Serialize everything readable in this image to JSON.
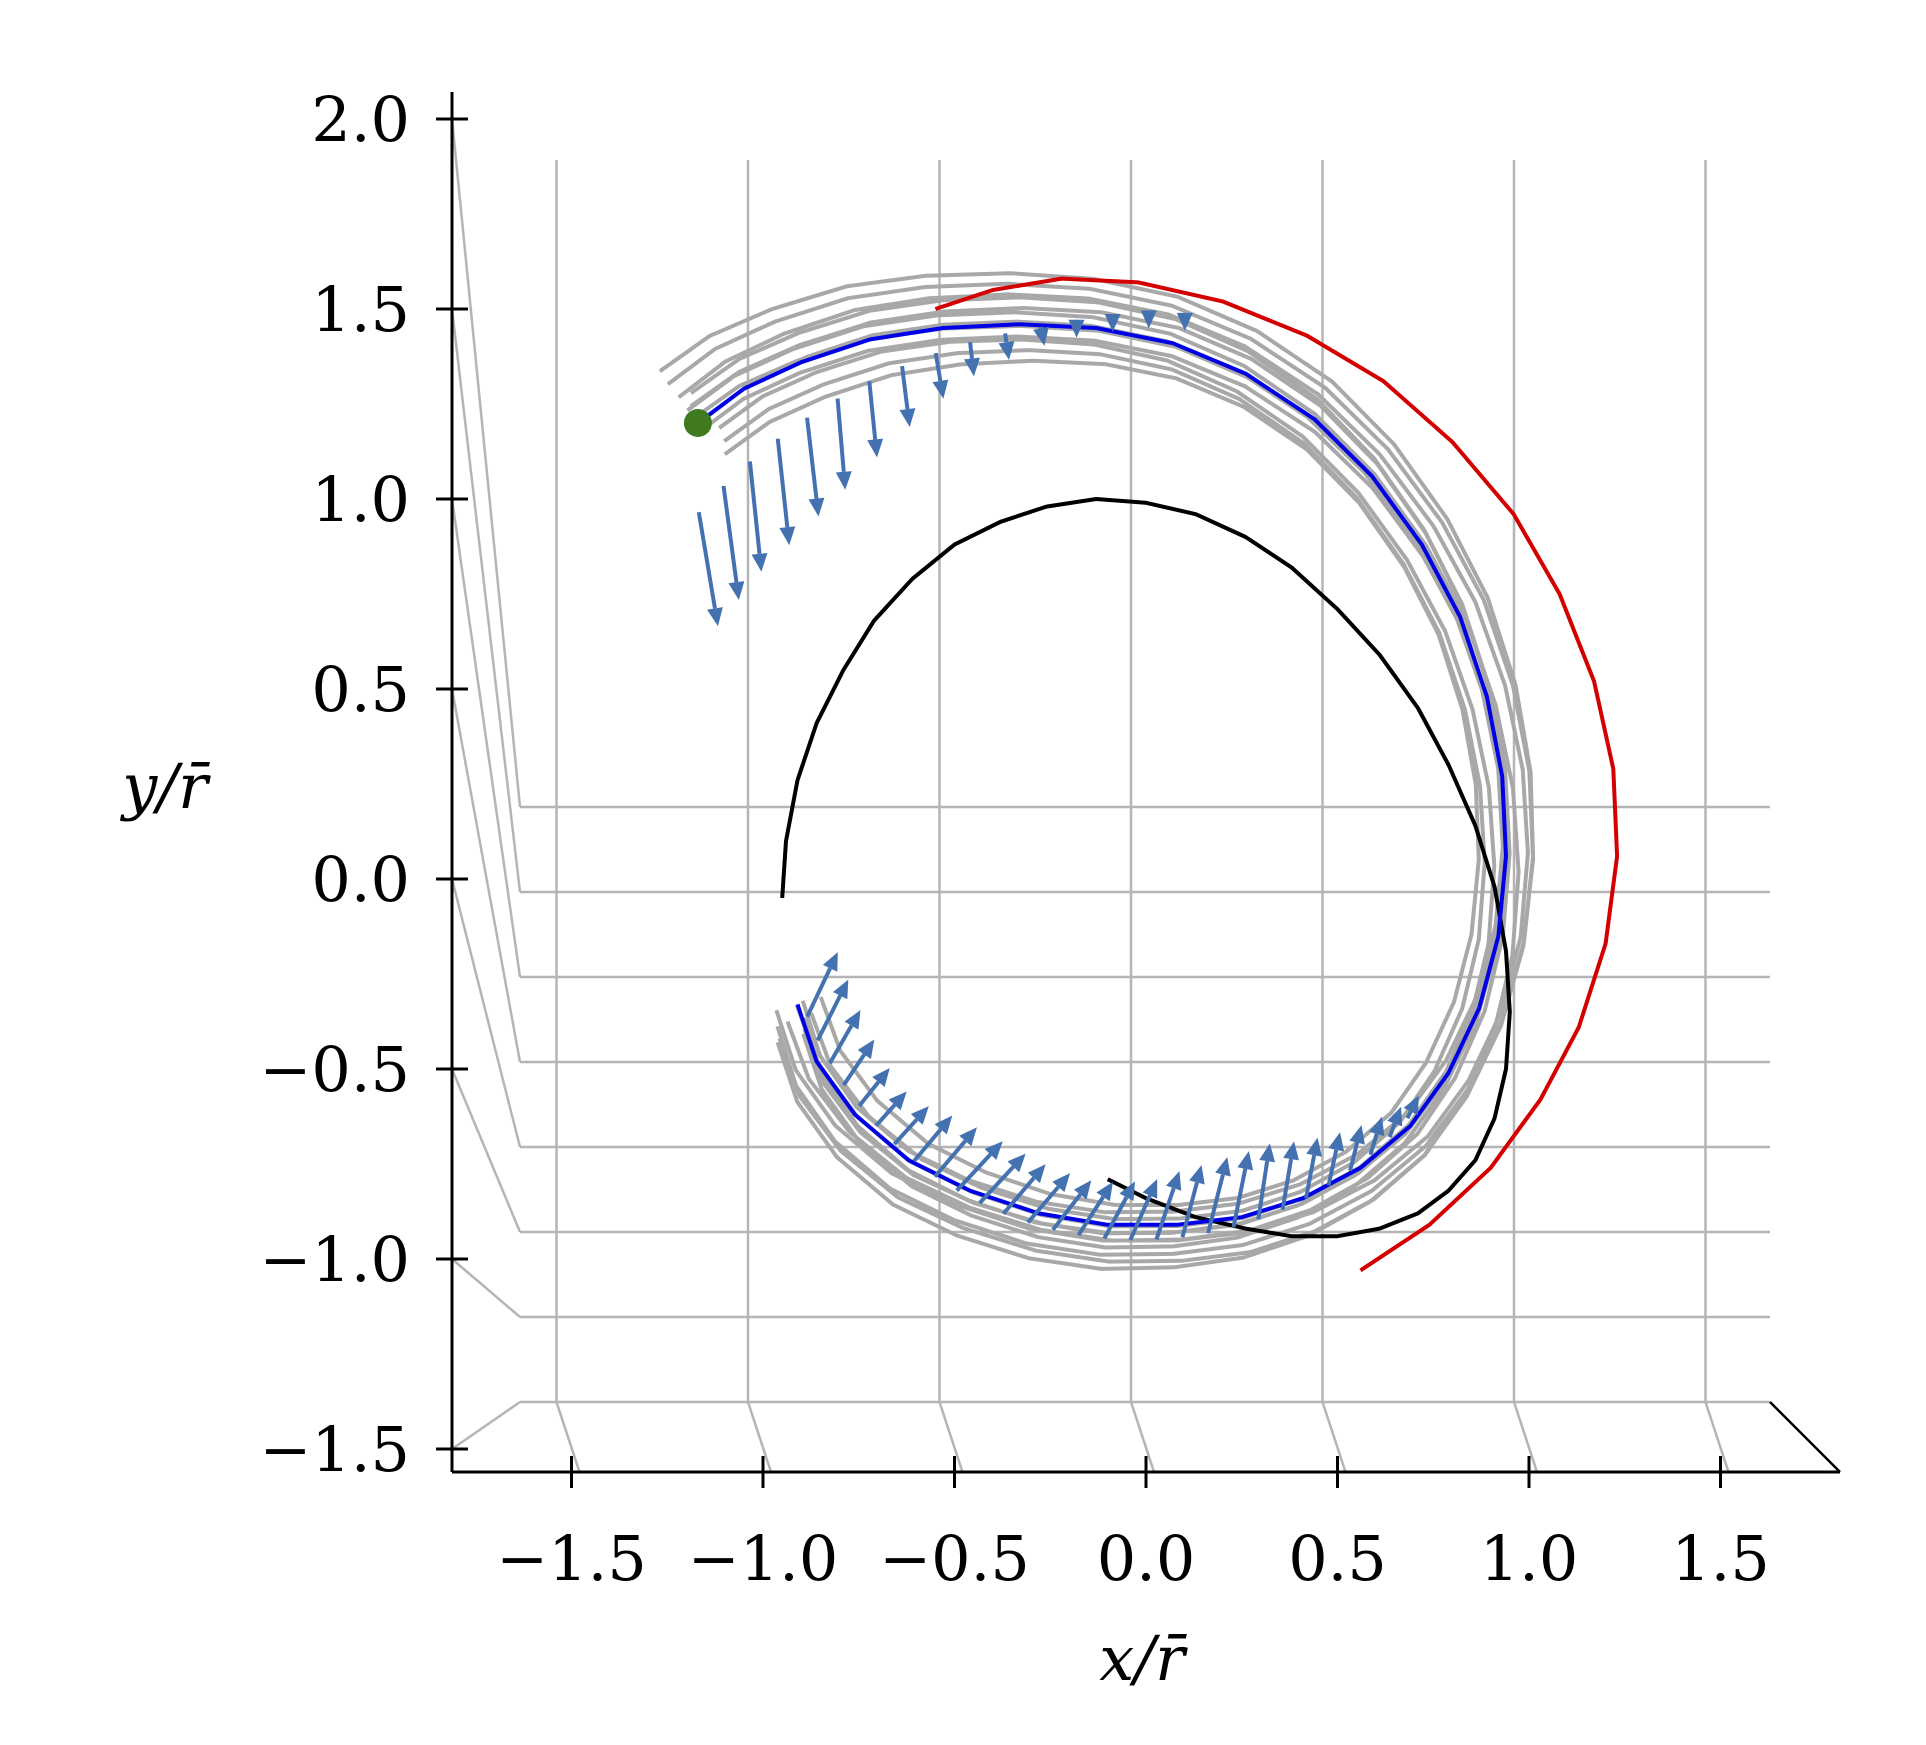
{
  "chart_data": {
    "type": "line",
    "title": "",
    "xlabel": "x/r̄",
    "ylabel": "y/r̄",
    "xlim": [
      -1.8,
      1.8
    ],
    "ylim": [
      -1.5,
      2.0
    ],
    "x_ticks": [
      -1.5,
      -1.0,
      -0.5,
      0.0,
      0.5,
      1.0,
      1.5
    ],
    "x_tick_labels": [
      "−1.5",
      "−1.0",
      "−0.5",
      "0.0",
      "0.5",
      "1.0",
      "1.5"
    ],
    "y_ticks": [
      -1.5,
      -1.0,
      -0.5,
      0.0,
      0.5,
      1.0,
      1.5,
      2.0
    ],
    "y_tick_labels": [
      "−1.5",
      "−1.0",
      "−0.5",
      "0.0",
      "0.5",
      "1.0",
      "1.5",
      "2.0"
    ],
    "grid": true,
    "colors": {
      "black_orbit": "#000000",
      "red_orbit": "#d40000",
      "blue_trajectory": "#0000e6",
      "gray_ensemble": "#a8a8a8",
      "arrows": "#4472b0",
      "start_point": "#3f7a1e",
      "grid": "#b5b5b5"
    },
    "series": [
      {
        "x": [
          -0.95,
          -0.94,
          -0.91,
          -0.86,
          -0.79,
          -0.71,
          -0.61,
          -0.5,
          -0.38,
          -0.26,
          -0.13,
          0.0,
          0.13,
          0.26,
          0.38,
          0.5,
          0.61,
          0.71,
          0.79,
          0.86,
          0.91,
          0.94,
          0.95,
          0.94,
          0.91,
          0.86,
          0.79,
          0.71,
          0.61,
          0.5,
          0.38,
          0.26,
          0.13,
          0.0,
          -0.1
        ],
        "y": [
          -0.05,
          0.1,
          0.26,
          0.41,
          0.55,
          0.68,
          0.79,
          0.88,
          0.94,
          0.98,
          1.0,
          0.99,
          0.96,
          0.9,
          0.82,
          0.71,
          0.59,
          0.45,
          0.3,
          0.14,
          -0.02,
          -0.19,
          -0.35,
          -0.5,
          -0.63,
          -0.74,
          -0.82,
          -0.88,
          -0.92,
          -0.94,
          -0.94,
          -0.92,
          -0.89,
          -0.84,
          -0.79
        ]
      },
      {
        "x": [
          -0.55,
          -0.4,
          -0.22,
          -0.02,
          0.2,
          0.42,
          0.62,
          0.8,
          0.96,
          1.08,
          1.17,
          1.22,
          1.23,
          1.2,
          1.13,
          1.03,
          0.9,
          0.74,
          0.56
        ],
        "y": [
          1.5,
          1.55,
          1.58,
          1.57,
          1.52,
          1.43,
          1.31,
          1.15,
          0.96,
          0.75,
          0.52,
          0.29,
          0.06,
          -0.17,
          -0.39,
          -0.58,
          -0.76,
          -0.91,
          -1.03
        ]
      },
      {
        "x": [
          -1.17,
          -1.05,
          -0.9,
          -0.72,
          -0.53,
          -0.33,
          -0.13,
          0.07,
          0.26,
          0.44,
          0.59,
          0.72,
          0.82,
          0.89,
          0.93,
          0.94,
          0.92,
          0.87,
          0.79,
          0.69,
          0.56,
          0.41,
          0.25,
          0.08,
          -0.1,
          -0.28,
          -0.46,
          -0.62,
          -0.76,
          -0.86,
          -0.91
        ],
        "y": [
          1.2,
          1.29,
          1.36,
          1.42,
          1.45,
          1.46,
          1.45,
          1.41,
          1.33,
          1.21,
          1.06,
          0.88,
          0.69,
          0.48,
          0.27,
          0.06,
          -0.15,
          -0.34,
          -0.51,
          -0.65,
          -0.76,
          -0.84,
          -0.89,
          -0.91,
          -0.91,
          -0.88,
          -0.82,
          -0.74,
          -0.62,
          -0.48,
          -0.33
        ]
      }
    ],
    "start_point": {
      "x": -1.17,
      "y": 1.2
    },
    "arrow_offsets": {
      "note_free": true,
      "upper_dx": [
        0.05,
        0.04,
        0.03,
        0.03,
        0.03,
        0.02,
        0.02,
        0.02,
        0.02,
        0.01,
        0.01,
        0.01,
        0.0,
        0.0,
        0.0,
        0.0
      ],
      "upper_dy": [
        -0.3,
        -0.3,
        -0.29,
        -0.28,
        -0.26,
        -0.24,
        -0.2,
        -0.16,
        -0.12,
        -0.09,
        -0.07,
        -0.05,
        -0.04,
        -0.03,
        -0.02,
        -0.02
      ],
      "lower_dx": [
        0.08,
        0.08,
        0.08,
        0.08,
        0.08,
        0.08,
        0.09,
        0.1,
        0.11,
        0.12,
        0.12,
        0.11,
        0.11,
        0.1,
        0.09,
        0.08,
        0.07,
        0.06,
        0.05,
        0.05,
        0.04,
        0.03,
        0.03,
        0.03,
        0.03,
        0.03,
        0.03,
        0.03,
        0.03
      ],
      "lower_dy": [
        0.17,
        0.16,
        0.14,
        0.12,
        0.1,
        0.09,
        0.1,
        0.12,
        0.13,
        0.13,
        0.13,
        0.13,
        0.13,
        0.13,
        0.14,
        0.15,
        0.16,
        0.18,
        0.19,
        0.2,
        0.2,
        0.2,
        0.18,
        0.16,
        0.14,
        0.12,
        0.1,
        0.08,
        0.06
      ]
    }
  }
}
